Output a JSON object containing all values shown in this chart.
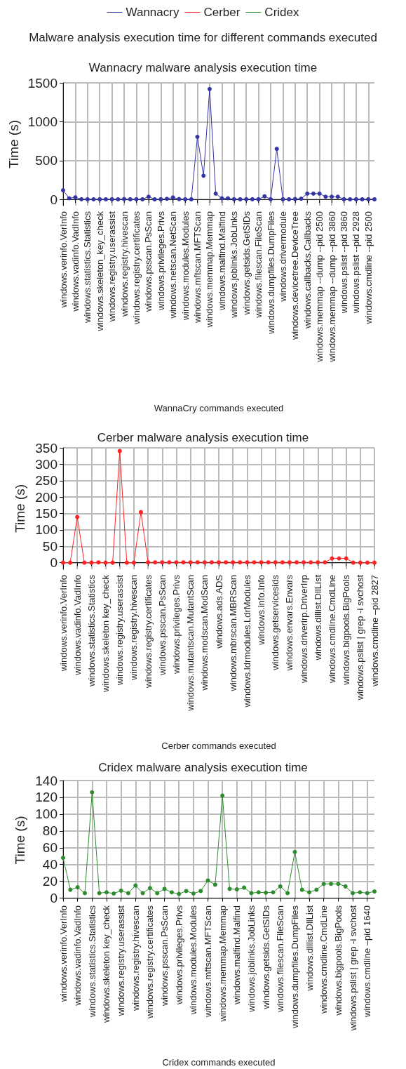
{
  "chart_data": [
    {
      "type": "line",
      "title": "Malware analysis execution time for different commands executed",
      "subtitle": "Wannacry malware analysis execution time",
      "xlabel": "WannaCry commands executed",
      "ylabel": "Time (s)",
      "legend": "top",
      "grid": true,
      "marker": "circle",
      "line_style": "solid",
      "ylim": [
        -80,
        1500
      ],
      "yticks": [
        0,
        500,
        1000,
        1500
      ],
      "categories": [
        "windows.verinfo.VerInfo",
        null,
        "windows.vadinfo.VadInfo",
        null,
        "windows.statistics.Statistics",
        null,
        "windows.skeleton_key_check",
        null,
        "windows.registry.userassist",
        null,
        "windows.registry.hivescan",
        null,
        "windows.registry.certificates",
        null,
        "windows.psscan.PsScan",
        null,
        "windows.privileges.Privs",
        null,
        "windows.netscan.NetScan",
        null,
        "windows.modules.Modules",
        null,
        "windows.mftscan.MFTScan",
        null,
        "windows.memmap.Memmap",
        null,
        "windows.malfind.Malfind",
        null,
        "windows.joblinks.JobLinks",
        null,
        "windows.getsids.GetSIDs",
        null,
        "windows.filescan.FileScan",
        null,
        "windows.dumpfiles.DumpFiles",
        null,
        "windows.drivermodule",
        null,
        "windows.devicetree.DeviceTree",
        null,
        "windows.callbacks.Callbacks",
        null,
        "windows.memmap --dump --pid 2500",
        null,
        "windows.memmap --dump --pid 3860",
        null,
        "windows.pslist --pid 3860",
        null,
        "windows.pslist --pid 2928",
        null,
        "windows.cmdline --pid 2500",
        null
      ],
      "series": [
        {
          "name": "Wannacry",
          "color": "#3535a5",
          "values": [
            118,
            15,
            27,
            3,
            3,
            2,
            2,
            2,
            2,
            2,
            5,
            2,
            2,
            2,
            35,
            2,
            2,
            8,
            25,
            5,
            2,
            2,
            805,
            305,
            1420,
            75,
            15,
            15,
            3,
            2,
            3,
            3,
            3,
            40,
            3,
            650,
            2,
            2,
            5,
            10,
            75,
            75,
            75,
            35,
            35,
            35,
            3,
            2,
            2,
            2,
            2,
            2
          ]
        }
      ]
    },
    {
      "type": "line",
      "title": "Cerber malware analysis execution time",
      "xlabel": "Cerber commands executed",
      "ylabel": "Time (s)",
      "grid": true,
      "marker": "circle",
      "line_style": "solid",
      "ylim": [
        -20,
        350
      ],
      "yticks": [
        0,
        50,
        100,
        150,
        200,
        250,
        300,
        350
      ],
      "categories": [
        "windows.verinfo.VerInfo",
        null,
        "windows.vadinfo.VadInfo",
        null,
        "windows.statistics.Statistics",
        null,
        "windows.skeleton key_check",
        null,
        "windows.registry.userassist",
        null,
        "windows.registry.hivescan",
        null,
        "windows.registry.certificates",
        null,
        "windows.psscan.PsScan",
        null,
        "windows.privileges.Privs",
        null,
        "windows.mutantscan.MutantScan",
        null,
        "windows.modscan.ModScan",
        null,
        "windows.ads.ADS",
        null,
        "windows.mbrscan.MBRScan",
        null,
        "windows.ldrmodules.LdrModules",
        null,
        "windows.info.Info",
        null,
        "windows.getservicesids",
        null,
        "windows.envars.Envars",
        null,
        "windows.driverirp.DriverIrp",
        null,
        "windows.dlllist.DllList",
        null,
        "windows.cmdline.CmdLine",
        null,
        "windows.bigpools.BigPools",
        null,
        "windows.pslist | grep -i svchost",
        null,
        "windows.cmdline –pid 2827"
      ],
      "series": [
        {
          "name": "Cerber",
          "color": "#ff2222",
          "values": [
            0,
            0,
            139,
            0,
            0,
            1,
            0,
            0,
            340,
            0,
            0,
            154,
            1,
            1,
            1,
            1,
            1,
            1,
            1,
            1,
            1,
            1,
            1,
            1,
            1,
            1,
            1,
            1,
            1,
            1,
            1,
            1,
            1,
            1,
            1,
            1,
            1,
            1,
            13,
            13,
            13,
            0,
            0,
            0,
            0
          ]
        }
      ]
    },
    {
      "type": "line",
      "title": "Cridex malware analysis execution time",
      "xlabel": "Cridex commands executed",
      "ylabel": "Time (s)",
      "grid": true,
      "marker": "circle",
      "line_style": "solid",
      "ylim": [
        -2,
        140
      ],
      "yticks": [
        0,
        20,
        40,
        60,
        80,
        100,
        120,
        140
      ],
      "categories": [
        "windows.verinfo.VerInfo",
        null,
        "windows.vadinfo.VadInfo",
        null,
        "windows.statistics.Statistics",
        null,
        "windows.skeleton key_check",
        null,
        "windows.registry.userassist",
        null,
        "windows.registry.hivescan",
        null,
        "windows.registry.certificates",
        null,
        "windows.psscan.PsScan",
        null,
        "windows.privileges.Privs",
        null,
        "windows.modules.Modules",
        null,
        "windows.mftscan.MFTScan",
        null,
        "windows.memmap.Memmap",
        null,
        "windows.malfind.Malfind",
        null,
        "windows.joblinks.JobLinks",
        null,
        "windows.getsids.GetSIDs",
        null,
        "windows.filescan.FileScan",
        null,
        "windows.dumpfiles.DumpFiles",
        null,
        "windows.dlllist.DllList",
        null,
        "windows.cmdline.CmdLine",
        null,
        "windows.bigpools.BigPools",
        null,
        "windows.pslist | grep -i svchost",
        null,
        "windows.cmdline –pid 1640",
        null
      ],
      "series": [
        {
          "name": "Cridex",
          "color": "#2e8b2e",
          "values": [
            48,
            10,
            13,
            6,
            126,
            6,
            7,
            5.5,
            9,
            6,
            15,
            6,
            12,
            6,
            11,
            7,
            5,
            8.5,
            5.5,
            8.5,
            21,
            16,
            122,
            11,
            10.5,
            12.5,
            6,
            7,
            6.5,
            7,
            14,
            6,
            55,
            10,
            7,
            10,
            17,
            17,
            17,
            14,
            6,
            7,
            6,
            8
          ]
        }
      ]
    }
  ]
}
